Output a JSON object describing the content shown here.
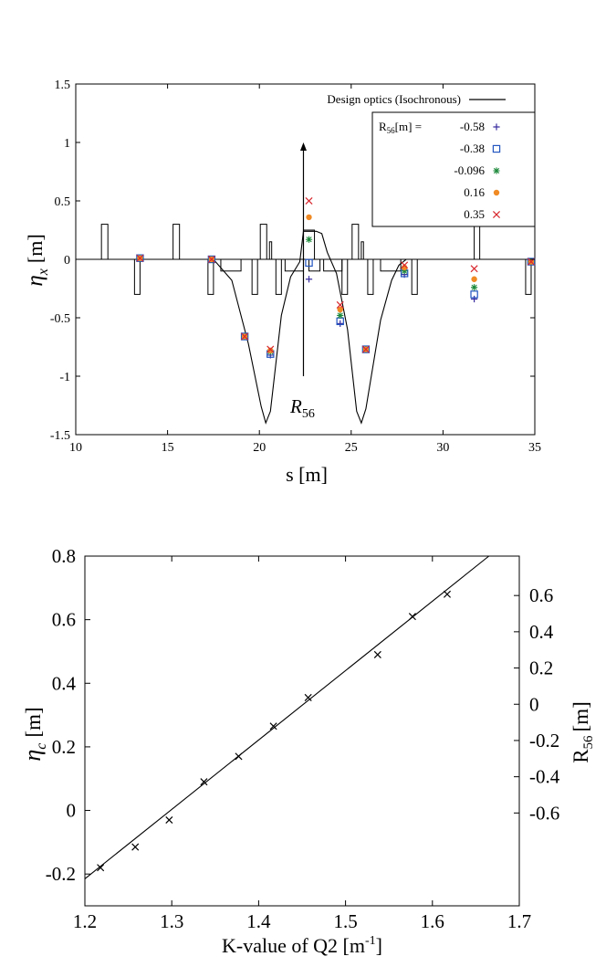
{
  "chart_data": [
    {
      "type": "scatter",
      "title": "",
      "xlabel": "s [m]",
      "ylabel_main": "η",
      "ylabel_sub": "x",
      "ylabel_unit": "[m]",
      "xlim": [
        10,
        35
      ],
      "ylim": [
        -1.5,
        1.5
      ],
      "xticks": [
        "10",
        "15",
        "20",
        "25",
        "30",
        "35"
      ],
      "xtick_values": [
        10,
        15,
        20,
        25,
        30,
        35
      ],
      "yticks": [
        "1.5",
        "1",
        "0.5",
        "0",
        "-0.5",
        "-1",
        "-1.5"
      ],
      "ytick_values": [
        1.5,
        1,
        0.5,
        0,
        -0.5,
        -1,
        -1.5
      ],
      "legend_placement": "top-right",
      "legend_line_label": "Design optics (Isochronous)",
      "legend_header": "R",
      "legend_header_sub": "56",
      "legend_header_unit": "[m] =",
      "design_optics": {
        "s": [
          10,
          17.5,
          18.5,
          19.4,
          20.1,
          20.35,
          20.6,
          21.2,
          21.7,
          22.2,
          22.4,
          22.7,
          23.1,
          23.4,
          23.7,
          24.2,
          24.8,
          25.3,
          25.55,
          25.8,
          26.6,
          27.2,
          27.6,
          28,
          35
        ],
        "eta": [
          0,
          0,
          -0.18,
          -0.72,
          -1.26,
          -1.4,
          -1.3,
          -0.48,
          -0.15,
          -0.02,
          0.24,
          0.24,
          0.24,
          0.22,
          0.06,
          -0.12,
          -0.6,
          -1.3,
          -1.4,
          -1.28,
          -0.52,
          -0.18,
          -0.05,
          0,
          0
        ]
      },
      "magnets": [
        {
          "s": 11.4,
          "w": 0.35,
          "h": 0.3
        },
        {
          "s": 13.2,
          "w": 0.3,
          "h": -0.3
        },
        {
          "s": 15.3,
          "w": 0.35,
          "h": 0.3
        },
        {
          "s": 17.2,
          "w": 0.3,
          "h": -0.3
        },
        {
          "s": 17.9,
          "w": 1.1,
          "h": -0.1
        },
        {
          "s": 19.6,
          "w": 0.3,
          "h": -0.3
        },
        {
          "s": 20.05,
          "w": 0.35,
          "h": 0.3
        },
        {
          "s": 20.55,
          "w": 0.12,
          "h": 0.15
        },
        {
          "s": 20.9,
          "w": 0.3,
          "h": -0.3
        },
        {
          "s": 21.4,
          "w": 1.0,
          "h": -0.1
        },
        {
          "s": 22.4,
          "w": 0.6,
          "h": 0.25
        },
        {
          "s": 22.7,
          "w": 0.6,
          "h": -0.1
        },
        {
          "s": 23.5,
          "w": 1.0,
          "h": -0.1
        },
        {
          "s": 24.5,
          "w": 0.3,
          "h": -0.3
        },
        {
          "s": 25.05,
          "w": 0.35,
          "h": 0.3
        },
        {
          "s": 25.55,
          "w": 0.12,
          "h": 0.15
        },
        {
          "s": 25.9,
          "w": 0.3,
          "h": -0.3
        },
        {
          "s": 26.6,
          "w": 1.1,
          "h": -0.1
        },
        {
          "s": 28.3,
          "w": 0.3,
          "h": -0.3
        },
        {
          "s": 31.7,
          "w": 0.3,
          "h": 0.3
        },
        {
          "s": 34.5,
          "w": 0.3,
          "h": -0.3
        }
      ],
      "series": [
        {
          "name": "-0.58",
          "marker": "plus",
          "color": "#3a2ea0",
          "x": [
            13.5,
            17.4,
            19.2,
            20.6,
            22.7,
            24.4,
            25.8,
            27.9,
            31.7,
            34.8
          ],
          "y": [
            0.01,
            0.0,
            -0.66,
            -0.82,
            -0.17,
            -0.55,
            -0.77,
            -0.13,
            -0.34,
            -0.02
          ]
        },
        {
          "name": "-0.38",
          "marker": "square",
          "color": "#2255c0",
          "x": [
            13.5,
            17.4,
            19.2,
            20.6,
            22.7,
            24.4,
            25.8,
            27.9,
            31.7,
            34.8
          ],
          "y": [
            0.01,
            0.0,
            -0.66,
            -0.81,
            -0.03,
            -0.53,
            -0.77,
            -0.12,
            -0.3,
            -0.02
          ]
        },
        {
          "name": "-0.096",
          "marker": "star",
          "color": "#1e8a3c",
          "x": [
            13.5,
            17.4,
            19.2,
            20.6,
            22.7,
            24.4,
            25.8,
            27.9,
            31.7,
            34.8
          ],
          "y": [
            0.01,
            0.0,
            -0.66,
            -0.79,
            0.17,
            -0.48,
            -0.77,
            -0.1,
            -0.24,
            -0.02
          ]
        },
        {
          "name": "0.16",
          "marker": "circle",
          "color": "#f08a24",
          "x": [
            13.5,
            17.4,
            19.2,
            20.6,
            22.7,
            24.4,
            25.8,
            27.9,
            31.7,
            34.8
          ],
          "y": [
            0.01,
            0.0,
            -0.66,
            -0.78,
            0.36,
            -0.43,
            -0.77,
            -0.07,
            -0.17,
            -0.02
          ]
        },
        {
          "name": "0.35",
          "marker": "x",
          "color": "#d8282e",
          "x": [
            13.5,
            17.4,
            19.2,
            20.6,
            22.7,
            24.4,
            25.8,
            27.9,
            31.7,
            34.8
          ],
          "y": [
            0.01,
            0.0,
            -0.66,
            -0.77,
            0.5,
            -0.39,
            -0.77,
            -0.05,
            -0.08,
            -0.02
          ]
        }
      ],
      "annotation": {
        "text": "R",
        "sub": "56",
        "arrow_s": 22.4,
        "arrow_from": -1.0,
        "arrow_to": 1.0
      }
    },
    {
      "type": "scatter",
      "title": "",
      "xlabel": "K-value of Q2 [m",
      "xlabel_sup": "-1",
      "xlabel_end": "]",
      "ylabel_main": "η",
      "ylabel_sub": "c",
      "ylabel_unit": "[m]",
      "y2label": "R",
      "y2label_sub": "56",
      "y2label_unit": "[m]",
      "xlim": [
        1.2,
        1.7
      ],
      "ylim": [
        -0.3,
        0.8
      ],
      "xticks": [
        "1.2",
        "1.3",
        "1.4",
        "1.5",
        "1.6",
        "1.7"
      ],
      "xtick_values": [
        1.2,
        1.3,
        1.4,
        1.5,
        1.6,
        1.7
      ],
      "yticks": [
        "0.8",
        "0.6",
        "0.4",
        "0.2",
        "0",
        "-0.2"
      ],
      "ytick_values": [
        0.8,
        0.6,
        0.4,
        0.2,
        0,
        -0.2
      ],
      "y2ticks": [
        "0.6",
        "0.4",
        "0.2",
        "0",
        "-0.2",
        "-0.4",
        "-0.6"
      ],
      "y2tick_positions": [
        0.676,
        0.562,
        0.448,
        0.334,
        0.22,
        0.106,
        -0.008
      ],
      "fit_line": {
        "x": [
          1.2,
          1.665
        ],
        "y": [
          -0.215,
          0.8
        ]
      },
      "series": [
        {
          "name": "",
          "marker": "x",
          "color": "#000000",
          "x": [
            1.218,
            1.258,
            1.297,
            1.337,
            1.377,
            1.417,
            1.457,
            1.537,
            1.577,
            1.617
          ],
          "y": [
            -0.18,
            -0.115,
            -0.03,
            0.09,
            0.17,
            0.265,
            0.355,
            0.49,
            0.61,
            0.68
          ]
        }
      ]
    }
  ]
}
